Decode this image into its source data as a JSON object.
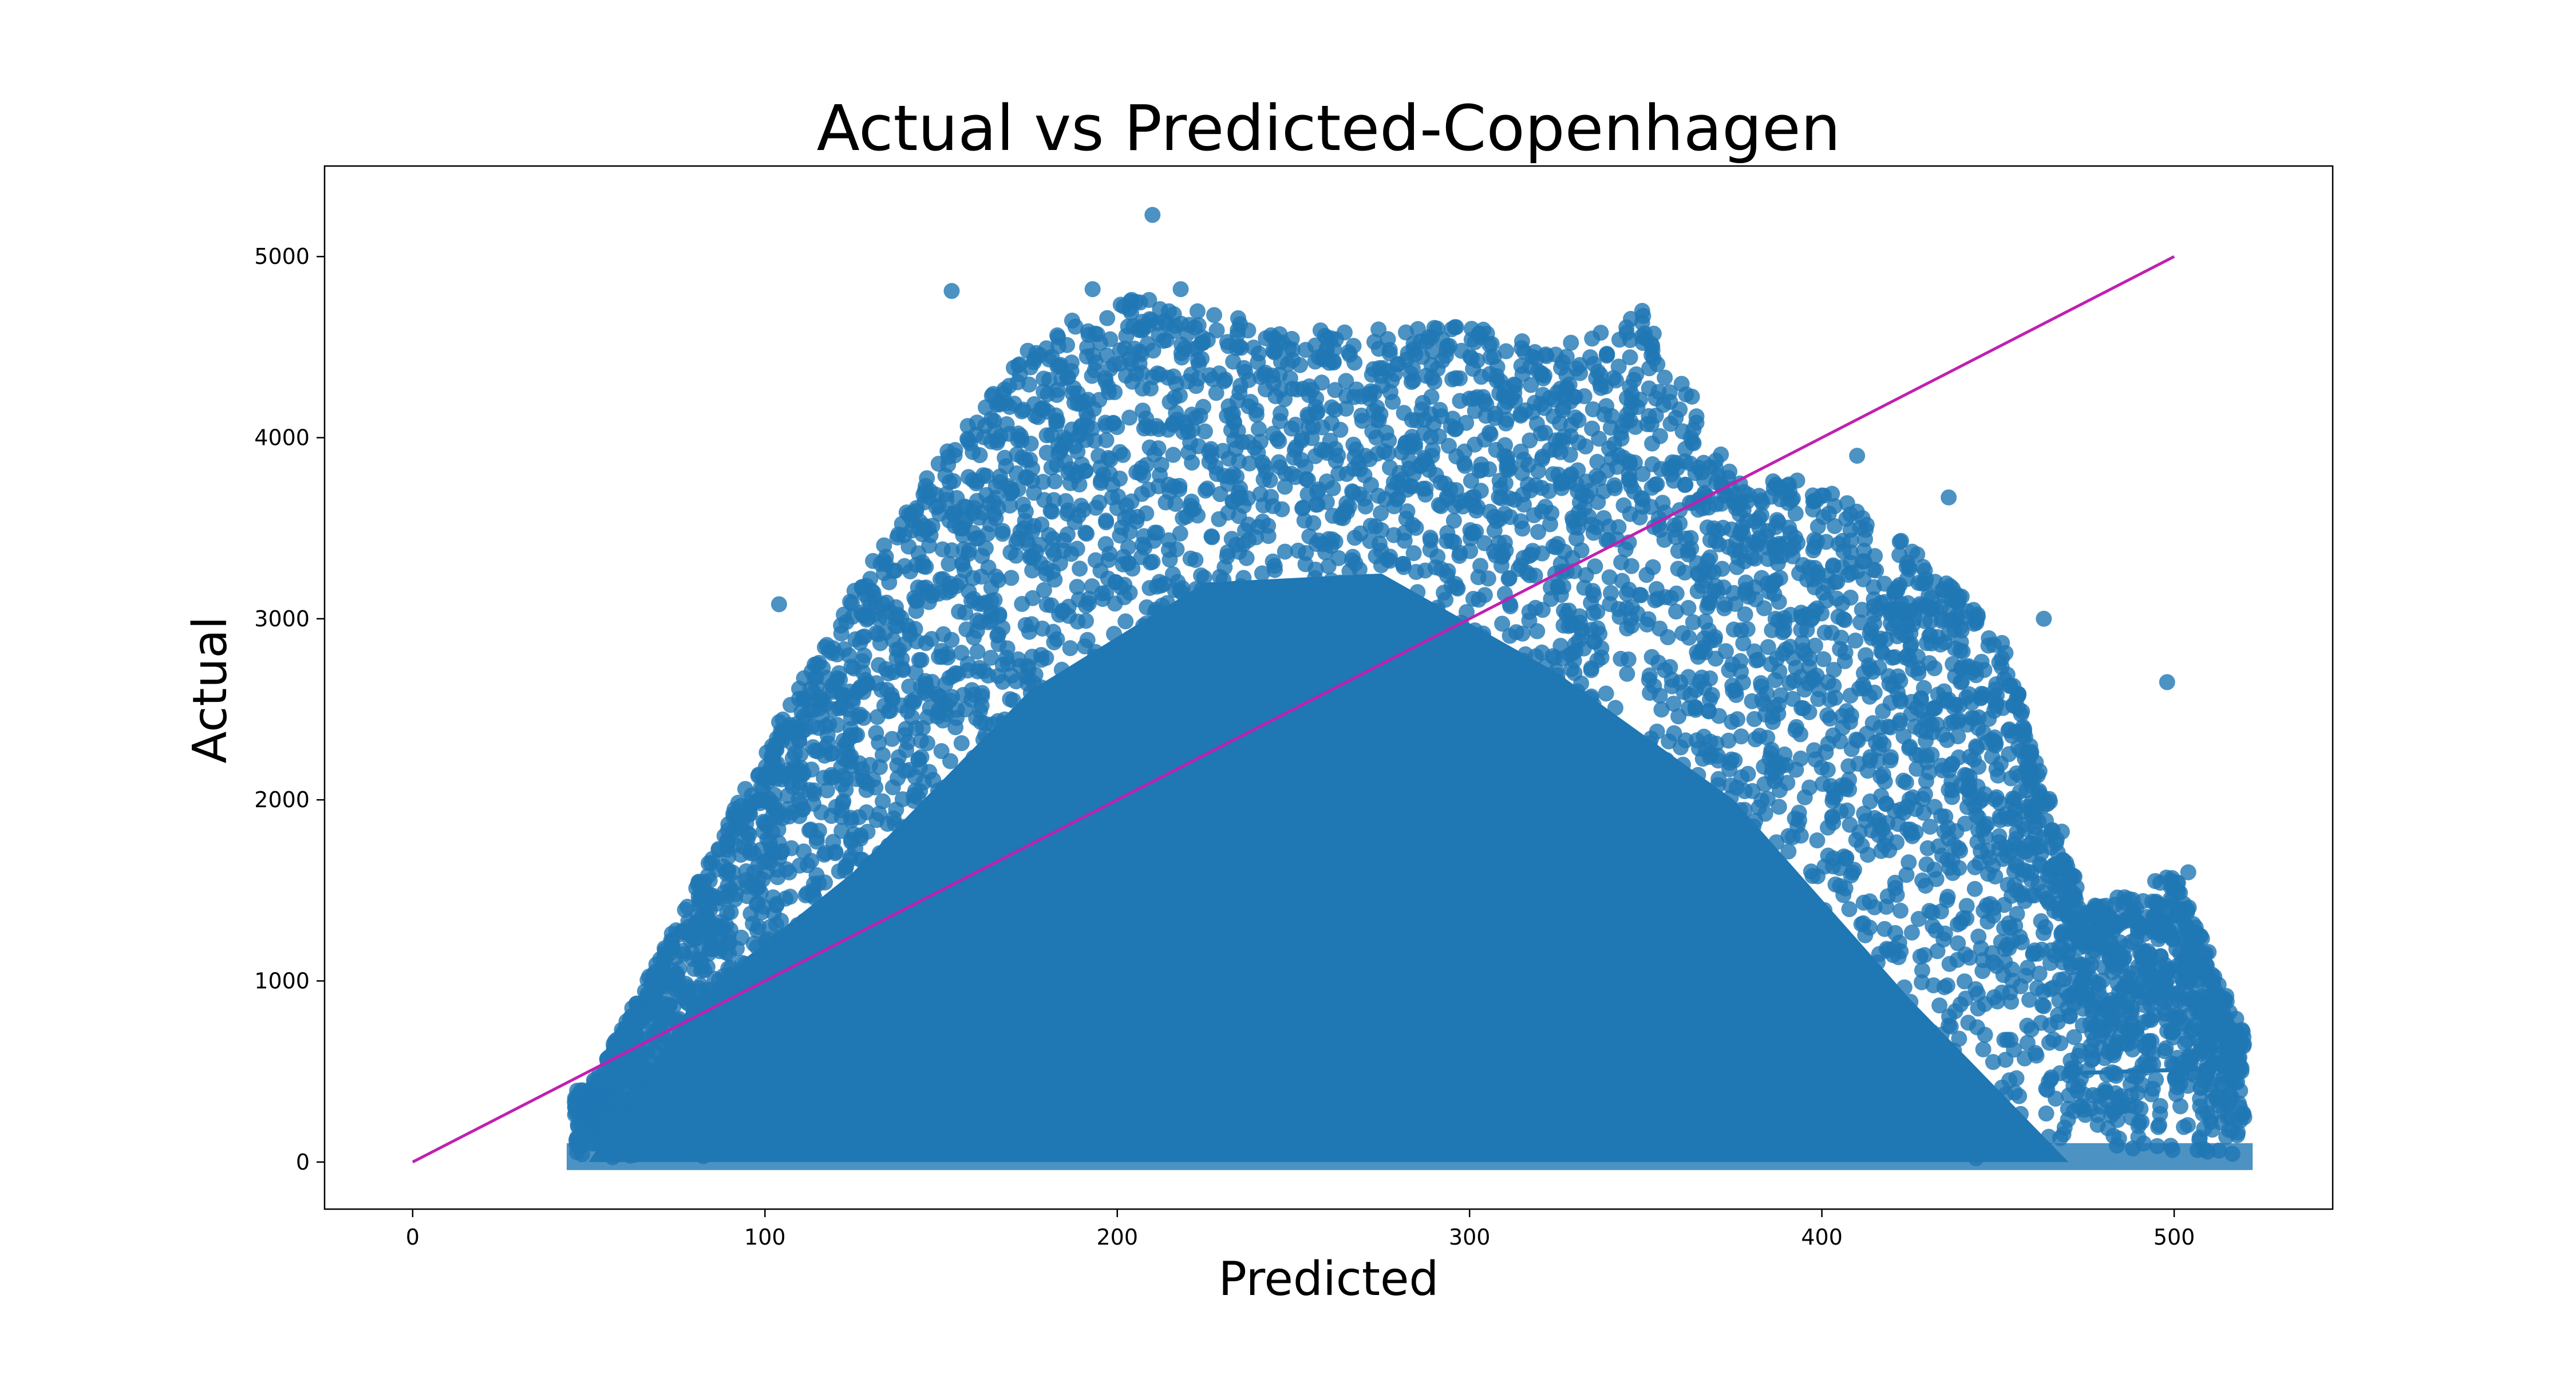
{
  "chart_data": {
    "type": "scatter",
    "title": "Actual vs Predicted-Copenhagen",
    "xlabel": "Predicted",
    "ylabel": "Actual",
    "xlim": [
      -25,
      545
    ],
    "ylim": [
      -260,
      5500
    ],
    "xticks": [
      0,
      100,
      200,
      300,
      400,
      500
    ],
    "yticks": [
      0,
      1000,
      2000,
      3000,
      4000,
      5000
    ],
    "grid": false,
    "legend": "none",
    "point_color": "#1f77b4",
    "point_alpha": 0.8,
    "marker": "circle",
    "point_cloud": {
      "x_range": [
        46,
        520
      ],
      "y_range": [
        0,
        5230
      ],
      "envelope": [
        [
          50,
          400
        ],
        [
          70,
          1130
        ],
        [
          100,
          2300
        ],
        [
          125,
          3150
        ],
        [
          150,
          3900
        ],
        [
          175,
          4500
        ],
        [
          200,
          4800
        ],
        [
          225,
          4700
        ],
        [
          250,
          4600
        ],
        [
          275,
          4600
        ],
        [
          300,
          4620
        ],
        [
          325,
          4500
        ],
        [
          350,
          4700
        ],
        [
          375,
          3800
        ],
        [
          400,
          3750
        ],
        [
          425,
          3400
        ],
        [
          450,
          2950
        ],
        [
          475,
          1400
        ],
        [
          500,
          1600
        ],
        [
          520,
          700
        ]
      ],
      "dense_core_envelope": [
        [
          50,
          0
        ],
        [
          80,
          900
        ],
        [
          125,
          1600
        ],
        [
          175,
          2600
        ],
        [
          225,
          3200
        ],
        [
          275,
          3250
        ],
        [
          325,
          2700
        ],
        [
          375,
          2000
        ],
        [
          425,
          900
        ],
        [
          450,
          400
        ],
        [
          470,
          0
        ]
      ],
      "notable_outliers": [
        {
          "x": 210,
          "y": 5230
        },
        {
          "x": 193,
          "y": 4820
        },
        {
          "x": 218,
          "y": 4820
        },
        {
          "x": 153,
          "y": 4810
        },
        {
          "x": 349,
          "y": 4700
        },
        {
          "x": 498,
          "y": 2650
        },
        {
          "x": 504,
          "y": 1600
        },
        {
          "x": 463,
          "y": 3000
        },
        {
          "x": 410,
          "y": 3900
        },
        {
          "x": 436,
          "y": 3670
        },
        {
          "x": 104,
          "y": 3080
        }
      ]
    },
    "series": [
      {
        "type": "line",
        "color": "#c020b0",
        "x": [
          0,
          500
        ],
        "y": [
          0,
          5000
        ]
      },
      {
        "type": "line",
        "color": "#1f77b4",
        "x": [
          470,
          520
        ],
        "y": [
          490,
          520
        ]
      }
    ]
  }
}
